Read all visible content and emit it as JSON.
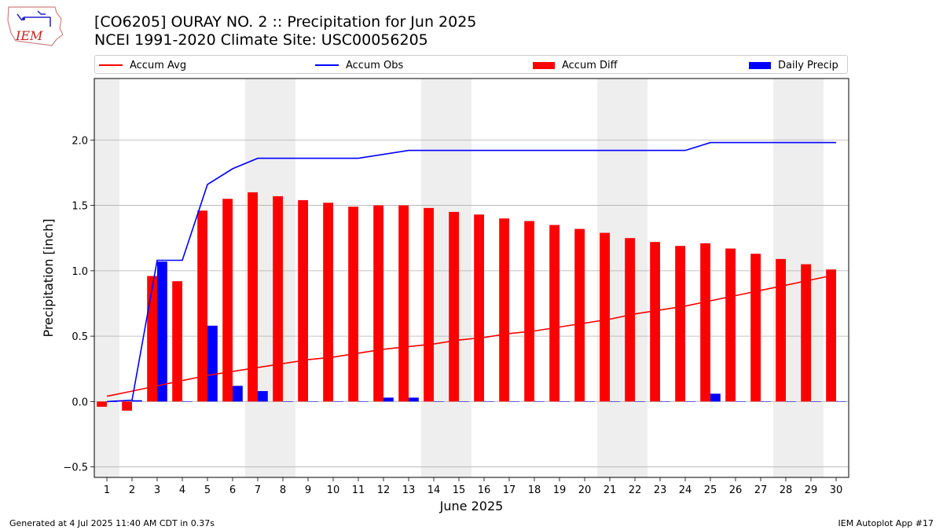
{
  "header": {
    "title_line1": "[CO6205] OURAY NO. 2 :: Precipitation for Jun 2025",
    "title_line2": "NCEI 1991-2020 Climate Site: USC00056205",
    "logo_text": "IEM"
  },
  "legend": [
    {
      "label": "Accum Avg",
      "kind": "line",
      "color": "#ff0000"
    },
    {
      "label": "Accum Obs",
      "kind": "line",
      "color": "#0000ff"
    },
    {
      "label": "Accum Diff",
      "kind": "bar",
      "color": "#ff0000"
    },
    {
      "label": "Daily Precip",
      "kind": "bar",
      "color": "#0000ff"
    }
  ],
  "footer": {
    "left": "Generated at 4 Jul 2025 11:40 AM CDT in 0.37s",
    "right": "IEM Autoplot App #17"
  },
  "chart_data": {
    "type": "bar",
    "title": "[CO6205] OURAY NO. 2 :: Precipitation for Jun 2025",
    "xlabel": "June 2025",
    "ylabel": "Precipitation [inch]",
    "ylim": [
      -0.58,
      2.47
    ],
    "yticks": [
      -0.5,
      0.0,
      0.5,
      1.0,
      1.5,
      2.0
    ],
    "ytick_labels": [
      "−0.5",
      "0.0",
      "0.5",
      "1.0",
      "1.5",
      "2.0"
    ],
    "grid": "horizontal",
    "legend_position": "top",
    "weekend_shading_days": [
      1,
      7,
      8,
      14,
      15,
      21,
      22,
      28,
      29
    ],
    "categories": [
      "1",
      "2",
      "3",
      "4",
      "5",
      "6",
      "7",
      "8",
      "9",
      "10",
      "11",
      "12",
      "13",
      "14",
      "15",
      "16",
      "17",
      "18",
      "19",
      "20",
      "21",
      "22",
      "23",
      "24",
      "25",
      "26",
      "27",
      "28",
      "29",
      "30"
    ],
    "series": [
      {
        "name": "Accum Diff",
        "kind": "bar",
        "color": "#ff0000",
        "values": [
          -0.04,
          -0.07,
          0.96,
          0.92,
          1.46,
          1.55,
          1.6,
          1.57,
          1.54,
          1.52,
          1.49,
          1.5,
          1.5,
          1.48,
          1.45,
          1.43,
          1.4,
          1.38,
          1.35,
          1.32,
          1.29,
          1.25,
          1.22,
          1.19,
          1.21,
          1.17,
          1.13,
          1.09,
          1.05,
          1.01
        ]
      },
      {
        "name": "Daily Precip",
        "kind": "bar",
        "color": "#0000ff",
        "values": [
          0.0,
          0.01,
          1.07,
          0.0,
          0.58,
          0.12,
          0.08,
          0.0,
          0.0,
          0.0,
          0.0,
          0.03,
          0.03,
          0.0,
          0.0,
          0.0,
          0.0,
          0.0,
          0.0,
          0.0,
          0.0,
          0.0,
          0.0,
          0.0,
          0.06,
          0.0,
          0.0,
          0.0,
          0.0,
          0.0
        ]
      },
      {
        "name": "Accum Avg",
        "kind": "line",
        "color": "#ff0000",
        "values": [
          0.04,
          0.08,
          0.12,
          0.16,
          0.2,
          0.23,
          0.26,
          0.29,
          0.32,
          0.34,
          0.37,
          0.4,
          0.42,
          0.44,
          0.47,
          0.49,
          0.52,
          0.54,
          0.57,
          0.6,
          0.63,
          0.67,
          0.7,
          0.73,
          0.77,
          0.81,
          0.85,
          0.89,
          0.93,
          0.97
        ]
      },
      {
        "name": "Accum Obs",
        "kind": "line",
        "color": "#0000ff",
        "values": [
          0.0,
          0.01,
          1.08,
          1.08,
          1.66,
          1.78,
          1.86,
          1.86,
          1.86,
          1.86,
          1.86,
          1.89,
          1.92,
          1.92,
          1.92,
          1.92,
          1.92,
          1.92,
          1.92,
          1.92,
          1.92,
          1.92,
          1.92,
          1.92,
          1.98,
          1.98,
          1.98,
          1.98,
          1.98,
          1.98
        ]
      }
    ]
  }
}
